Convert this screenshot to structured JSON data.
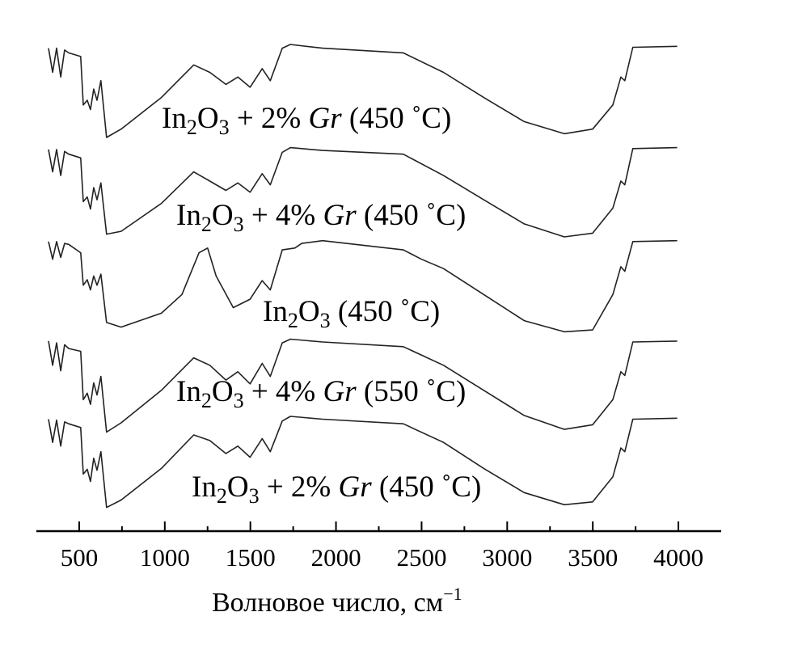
{
  "chart_data": {
    "type": "line",
    "title": "",
    "xlabel": "Волновое число, см",
    "xlabel_sup": "−1",
    "ylabel": "",
    "xlim": [
      250,
      4250
    ],
    "xticks": [
      500,
      1000,
      1500,
      2000,
      2500,
      3000,
      3500,
      4000
    ],
    "xtick_labels": [
      "500",
      "1000",
      "1500",
      "2000",
      "2500",
      "3000",
      "3500",
      "4000"
    ],
    "minor_xticks": [
      750,
      1250,
      1750,
      2250,
      2750,
      3250,
      3750
    ],
    "grid": false,
    "y_units": "relative transmittance (stacked, a.u.)",
    "series": [
      {
        "name": "In2O3 + 2% Gr (450 °C)",
        "offset": 4.0,
        "label": {
          "a": "In",
          "s1": "2",
          "b": "O",
          "s2": "3",
          "c": " + 2% ",
          "d": "Gr",
          "e": " (450 ˚C)"
        },
        "points": [
          [
            321,
            0.96
          ],
          [
            345,
            0.7
          ],
          [
            368,
            0.96
          ],
          [
            392,
            0.65
          ],
          [
            415,
            0.94
          ],
          [
            439,
            0.91
          ],
          [
            509,
            0.87
          ],
          [
            524,
            0.35
          ],
          [
            547,
            0.4
          ],
          [
            566,
            0.3
          ],
          [
            585,
            0.52
          ],
          [
            604,
            0.4
          ],
          [
            627,
            0.61
          ],
          [
            660,
            0.0
          ],
          [
            745,
            0.09
          ],
          [
            980,
            0.43
          ],
          [
            1169,
            0.78
          ],
          [
            1263,
            0.7
          ],
          [
            1357,
            0.57
          ],
          [
            1427,
            0.65
          ],
          [
            1498,
            0.54
          ],
          [
            1569,
            0.74
          ],
          [
            1616,
            0.61
          ],
          [
            1686,
            0.96
          ],
          [
            1734,
            1.0
          ],
          [
            1922,
            0.96
          ],
          [
            2393,
            0.91
          ],
          [
            2628,
            0.7
          ],
          [
            2863,
            0.43
          ],
          [
            3099,
            0.17
          ],
          [
            3334,
            0.04
          ],
          [
            3499,
            0.09
          ],
          [
            3617,
            0.35
          ],
          [
            3664,
            0.65
          ],
          [
            3687,
            0.61
          ],
          [
            3734,
            0.97
          ],
          [
            3993,
            0.98
          ]
        ]
      },
      {
        "name": "In2O3 + 4% Gr (450 °C)",
        "offset": 2.91,
        "label": {
          "a": "In",
          "s1": "2",
          "b": "O",
          "s2": "3",
          "c": " + 4% ",
          "d": "Gr",
          "e": " (450 ˚C)"
        },
        "points": [
          [
            321,
            0.96
          ],
          [
            345,
            0.72
          ],
          [
            368,
            0.96
          ],
          [
            392,
            0.68
          ],
          [
            415,
            0.94
          ],
          [
            439,
            0.91
          ],
          [
            509,
            0.87
          ],
          [
            524,
            0.4
          ],
          [
            547,
            0.45
          ],
          [
            566,
            0.32
          ],
          [
            585,
            0.55
          ],
          [
            604,
            0.42
          ],
          [
            627,
            0.6
          ],
          [
            660,
            0.05
          ],
          [
            745,
            0.08
          ],
          [
            980,
            0.38
          ],
          [
            1169,
            0.72
          ],
          [
            1263,
            0.62
          ],
          [
            1357,
            0.52
          ],
          [
            1427,
            0.6
          ],
          [
            1498,
            0.5
          ],
          [
            1569,
            0.7
          ],
          [
            1616,
            0.58
          ],
          [
            1686,
            0.93
          ],
          [
            1734,
            0.98
          ],
          [
            1922,
            0.95
          ],
          [
            2393,
            0.91
          ],
          [
            2628,
            0.68
          ],
          [
            2863,
            0.42
          ],
          [
            3099,
            0.16
          ],
          [
            3334,
            0.02
          ],
          [
            3499,
            0.06
          ],
          [
            3617,
            0.33
          ],
          [
            3664,
            0.62
          ],
          [
            3687,
            0.58
          ],
          [
            3734,
            0.97
          ],
          [
            3993,
            0.98
          ]
        ]
      },
      {
        "name": "In2O3 (450 °C)",
        "offset": 1.91,
        "label": {
          "a": "In",
          "s1": "2",
          "b": "O",
          "s2": "3",
          "c": "",
          "d": "",
          "e": " (450 ˚C)"
        },
        "points": [
          [
            321,
            0.97
          ],
          [
            345,
            0.78
          ],
          [
            368,
            0.97
          ],
          [
            392,
            0.8
          ],
          [
            415,
            0.95
          ],
          [
            439,
            0.94
          ],
          [
            509,
            0.85
          ],
          [
            524,
            0.5
          ],
          [
            547,
            0.56
          ],
          [
            566,
            0.45
          ],
          [
            585,
            0.6
          ],
          [
            604,
            0.5
          ],
          [
            627,
            0.62
          ],
          [
            660,
            0.1
          ],
          [
            745,
            0.05
          ],
          [
            980,
            0.2
          ],
          [
            1100,
            0.4
          ],
          [
            1200,
            0.85
          ],
          [
            1250,
            0.9
          ],
          [
            1300,
            0.6
          ],
          [
            1400,
            0.26
          ],
          [
            1498,
            0.35
          ],
          [
            1569,
            0.55
          ],
          [
            1616,
            0.45
          ],
          [
            1686,
            0.88
          ],
          [
            1760,
            0.9
          ],
          [
            1800,
            0.95
          ],
          [
            1922,
            0.98
          ],
          [
            2393,
            0.88
          ],
          [
            2500,
            0.78
          ],
          [
            2628,
            0.68
          ],
          [
            2863,
            0.4
          ],
          [
            3099,
            0.12
          ],
          [
            3334,
            0.0
          ],
          [
            3499,
            0.02
          ],
          [
            3617,
            0.4
          ],
          [
            3664,
            0.7
          ],
          [
            3687,
            0.65
          ],
          [
            3734,
            0.97
          ],
          [
            3993,
            0.98
          ]
        ]
      },
      {
        "name": "In2O3 + 4% Gr (550 °C)",
        "offset": 0.83,
        "label": {
          "a": "In",
          "s1": "2",
          "b": "O",
          "s2": "3",
          "c": " + 4% ",
          "d": "Gr",
          "e": " (550 ˚C)"
        },
        "points": [
          [
            321,
            0.98
          ],
          [
            345,
            0.72
          ],
          [
            368,
            0.96
          ],
          [
            392,
            0.66
          ],
          [
            415,
            0.94
          ],
          [
            439,
            0.9
          ],
          [
            509,
            0.87
          ],
          [
            524,
            0.35
          ],
          [
            547,
            0.42
          ],
          [
            566,
            0.3
          ],
          [
            585,
            0.53
          ],
          [
            604,
            0.4
          ],
          [
            627,
            0.6
          ],
          [
            660,
            0.0
          ],
          [
            745,
            0.1
          ],
          [
            980,
            0.45
          ],
          [
            1169,
            0.8
          ],
          [
            1263,
            0.72
          ],
          [
            1357,
            0.56
          ],
          [
            1427,
            0.65
          ],
          [
            1498,
            0.52
          ],
          [
            1569,
            0.74
          ],
          [
            1616,
            0.6
          ],
          [
            1686,
            0.96
          ],
          [
            1734,
            1.0
          ],
          [
            1922,
            0.97
          ],
          [
            2393,
            0.92
          ],
          [
            2628,
            0.72
          ],
          [
            2863,
            0.45
          ],
          [
            3099,
            0.18
          ],
          [
            3334,
            0.03
          ],
          [
            3499,
            0.08
          ],
          [
            3617,
            0.35
          ],
          [
            3664,
            0.65
          ],
          [
            3687,
            0.61
          ],
          [
            3734,
            0.97
          ],
          [
            3993,
            0.98
          ]
        ]
      },
      {
        "name": "In2O3 + 2% Gr (450 °C)",
        "offset": 0.0,
        "label": {
          "a": "In",
          "s1": "2",
          "b": "O",
          "s2": "3",
          "c": " + 2% ",
          "d": "Gr",
          "e": " (450 ˚C)"
        },
        "points": [
          [
            321,
            0.97
          ],
          [
            345,
            0.72
          ],
          [
            368,
            0.96
          ],
          [
            392,
            0.68
          ],
          [
            415,
            0.94
          ],
          [
            439,
            0.92
          ],
          [
            509,
            0.88
          ],
          [
            524,
            0.38
          ],
          [
            547,
            0.43
          ],
          [
            566,
            0.3
          ],
          [
            585,
            0.55
          ],
          [
            604,
            0.42
          ],
          [
            627,
            0.62
          ],
          [
            660,
            0.02
          ],
          [
            745,
            0.1
          ],
          [
            980,
            0.44
          ],
          [
            1169,
            0.8
          ],
          [
            1263,
            0.74
          ],
          [
            1357,
            0.6
          ],
          [
            1427,
            0.68
          ],
          [
            1498,
            0.56
          ],
          [
            1569,
            0.76
          ],
          [
            1616,
            0.62
          ],
          [
            1686,
            0.95
          ],
          [
            1734,
            1.0
          ],
          [
            1922,
            0.97
          ],
          [
            2393,
            0.92
          ],
          [
            2628,
            0.72
          ],
          [
            2863,
            0.44
          ],
          [
            3099,
            0.18
          ],
          [
            3334,
            0.05
          ],
          [
            3499,
            0.08
          ],
          [
            3617,
            0.35
          ],
          [
            3664,
            0.66
          ],
          [
            3687,
            0.62
          ],
          [
            3734,
            0.97
          ],
          [
            3993,
            0.98
          ]
        ]
      }
    ]
  }
}
